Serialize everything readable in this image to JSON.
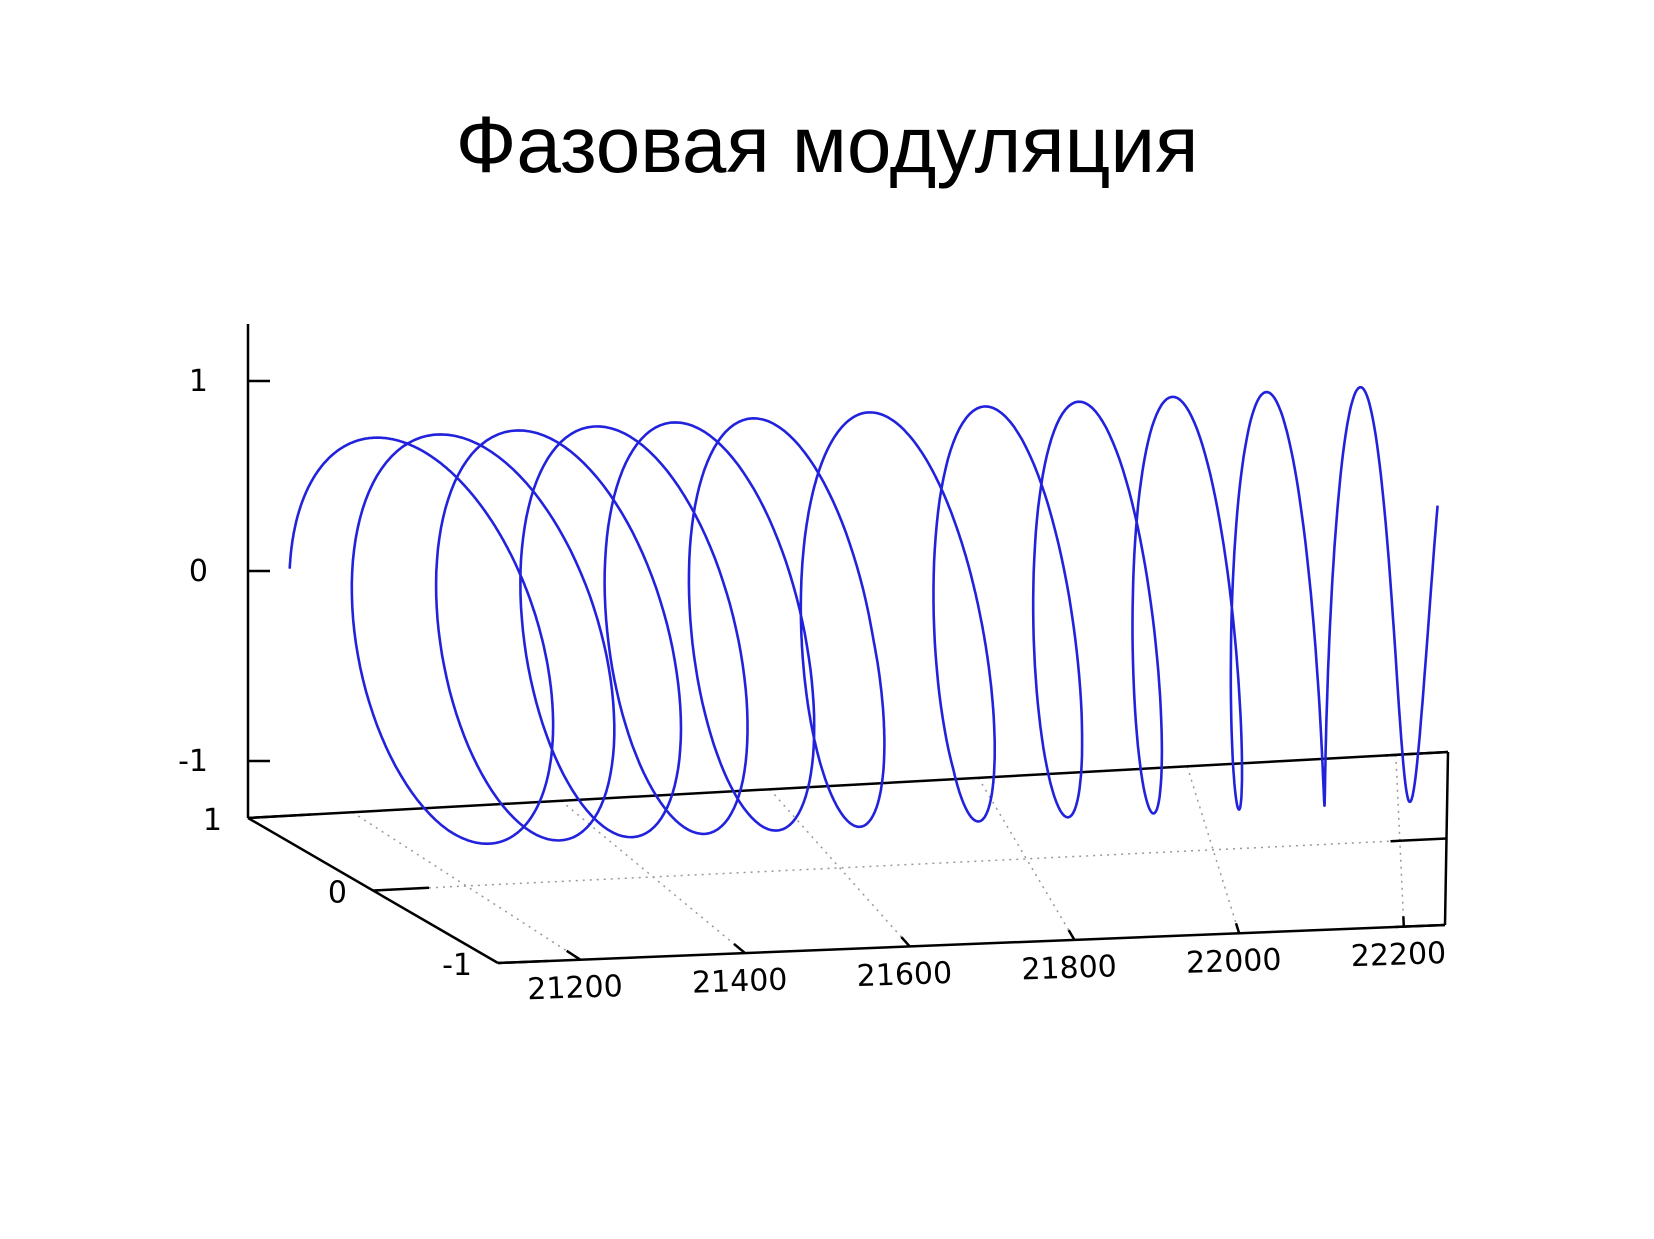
{
  "slide": {
    "title": "Фазовая модуляция"
  },
  "chart_data": {
    "type": "line",
    "projection": "3d",
    "title": "Фазовая модуляция",
    "xlabel": "",
    "ylabel": "",
    "zlabel": "",
    "grid": true,
    "legend": "none",
    "xlim": [
      21100,
      22250
    ],
    "ylim": [
      -1.05,
      1.05
    ],
    "zlim": [
      -1.3,
      1.3
    ],
    "x_ticks": [
      21200,
      21400,
      21600,
      21800,
      22000,
      22200
    ],
    "x_tick_labels": [
      "21200",
      "21400",
      "21600",
      "21800",
      "22000",
      "22200"
    ],
    "y_ticks": [
      -1,
      0,
      1
    ],
    "y_tick_labels": [
      "-1",
      "0",
      "1"
    ],
    "z_ticks": [
      -1,
      0,
      1
    ],
    "z_tick_labels": [
      "-1",
      "0",
      "1"
    ],
    "series": [
      {
        "color": "#2222dd",
        "x_range": [
          21140,
          22240
        ],
        "segments": [
          {
            "x_start": 21140,
            "x_end": 21180,
            "cycles": 0.75
          },
          {
            "x_start": 21180,
            "x_end": 21560,
            "cycles": 4.7
          },
          {
            "x_start": 21560,
            "x_end": 21740,
            "cycles": 1.35
          },
          {
            "x_start": 21740,
            "x_end": 22240,
            "cycles": 5.2
          }
        ]
      }
    ]
  }
}
